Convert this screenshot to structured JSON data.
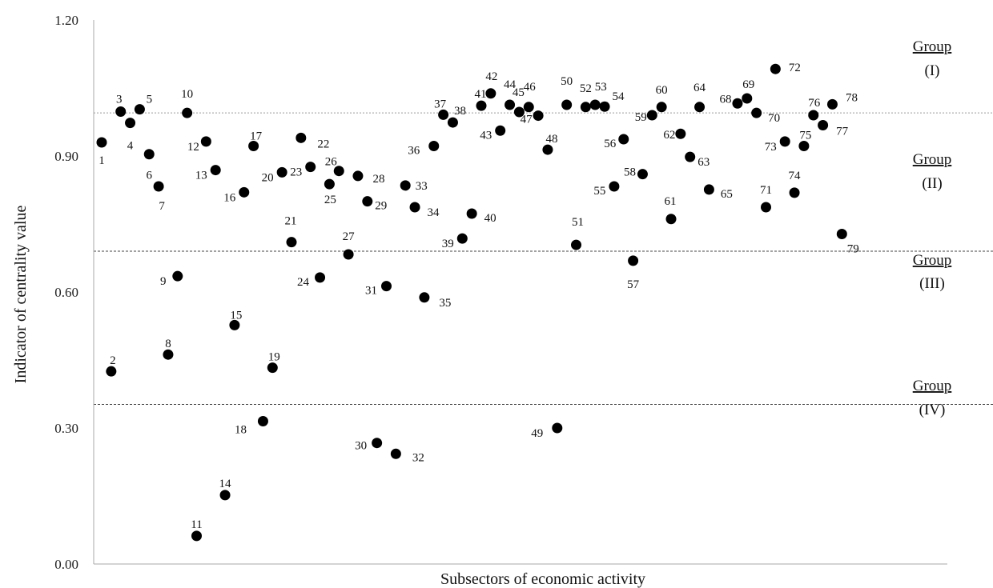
{
  "chart_data": {
    "type": "scatter",
    "title": "",
    "xlabel": "Subsectors of economic activity",
    "ylabel": "Indicator of centrality value",
    "ylim": [
      0,
      1.2
    ],
    "yticks": [
      "0.00",
      "0.30",
      "0.60",
      "0.90",
      "1.20"
    ],
    "grid": false,
    "marker_color": "#000000",
    "points": [
      {
        "x": 1,
        "y": 0.93,
        "label": "1"
      },
      {
        "x": 2,
        "y": 0.425,
        "label": "2"
      },
      {
        "x": 3,
        "y": 0.998,
        "label": "3"
      },
      {
        "x": 4,
        "y": 0.973,
        "label": "4"
      },
      {
        "x": 5,
        "y": 1.003,
        "label": "5"
      },
      {
        "x": 6,
        "y": 0.904,
        "label": "6"
      },
      {
        "x": 7,
        "y": 0.833,
        "label": "7"
      },
      {
        "x": 8,
        "y": 0.462,
        "label": "8"
      },
      {
        "x": 9,
        "y": 0.635,
        "label": "9"
      },
      {
        "x": 10,
        "y": 0.995,
        "label": "10"
      },
      {
        "x": 11,
        "y": 0.062,
        "label": "11"
      },
      {
        "x": 12,
        "y": 0.932,
        "label": "12"
      },
      {
        "x": 13,
        "y": 0.869,
        "label": "13"
      },
      {
        "x": 14,
        "y": 0.152,
        "label": "14"
      },
      {
        "x": 15,
        "y": 0.527,
        "label": "15"
      },
      {
        "x": 16,
        "y": 0.82,
        "label": "16"
      },
      {
        "x": 17,
        "y": 0.922,
        "label": "17"
      },
      {
        "x": 18,
        "y": 0.315,
        "label": "18"
      },
      {
        "x": 19,
        "y": 0.433,
        "label": "19"
      },
      {
        "x": 20,
        "y": 0.864,
        "label": "20"
      },
      {
        "x": 21,
        "y": 0.71,
        "label": "21"
      },
      {
        "x": 22,
        "y": 0.94,
        "label": "22"
      },
      {
        "x": 23,
        "y": 0.876,
        "label": "23"
      },
      {
        "x": 24,
        "y": 0.632,
        "label": "24"
      },
      {
        "x": 25,
        "y": 0.838,
        "label": "25"
      },
      {
        "x": 26,
        "y": 0.867,
        "label": "26"
      },
      {
        "x": 27,
        "y": 0.683,
        "label": "27"
      },
      {
        "x": 28,
        "y": 0.856,
        "label": "28"
      },
      {
        "x": 29,
        "y": 0.8,
        "label": "29"
      },
      {
        "x": 30,
        "y": 0.267,
        "label": "30"
      },
      {
        "x": 31,
        "y": 0.613,
        "label": "31"
      },
      {
        "x": 32,
        "y": 0.243,
        "label": "32"
      },
      {
        "x": 33,
        "y": 0.835,
        "label": "33"
      },
      {
        "x": 34,
        "y": 0.787,
        "label": "34"
      },
      {
        "x": 35,
        "y": 0.588,
        "label": "35"
      },
      {
        "x": 36,
        "y": 0.922,
        "label": "36"
      },
      {
        "x": 37,
        "y": 0.991,
        "label": "37"
      },
      {
        "x": 38,
        "y": 0.974,
        "label": "38"
      },
      {
        "x": 39,
        "y": 0.718,
        "label": "39"
      },
      {
        "x": 40,
        "y": 0.773,
        "label": "40"
      },
      {
        "x": 41,
        "y": 1.011,
        "label": "41"
      },
      {
        "x": 42,
        "y": 1.038,
        "label": "42"
      },
      {
        "x": 43,
        "y": 0.956,
        "label": "43"
      },
      {
        "x": 44,
        "y": 1.013,
        "label": "44"
      },
      {
        "x": 45,
        "y": 0.997,
        "label": "45"
      },
      {
        "x": 46,
        "y": 1.008,
        "label": "46"
      },
      {
        "x": 47,
        "y": 0.989,
        "label": "47"
      },
      {
        "x": 48,
        "y": 0.914,
        "label": "48"
      },
      {
        "x": 49,
        "y": 0.3,
        "label": "49"
      },
      {
        "x": 50,
        "y": 1.013,
        "label": "50"
      },
      {
        "x": 51,
        "y": 0.704,
        "label": "51"
      },
      {
        "x": 52,
        "y": 1.008,
        "label": "52"
      },
      {
        "x": 53,
        "y": 1.013,
        "label": "53"
      },
      {
        "x": 54,
        "y": 1.009,
        "label": "54"
      },
      {
        "x": 55,
        "y": 0.833,
        "label": "55"
      },
      {
        "x": 56,
        "y": 0.937,
        "label": "56"
      },
      {
        "x": 57,
        "y": 0.669,
        "label": "57"
      },
      {
        "x": 58,
        "y": 0.86,
        "label": "58"
      },
      {
        "x": 59,
        "y": 0.99,
        "label": "59"
      },
      {
        "x": 60,
        "y": 1.008,
        "label": "60"
      },
      {
        "x": 61,
        "y": 0.761,
        "label": "61"
      },
      {
        "x": 62,
        "y": 0.949,
        "label": "62"
      },
      {
        "x": 63,
        "y": 0.898,
        "label": "63"
      },
      {
        "x": 64,
        "y": 1.008,
        "label": "64"
      },
      {
        "x": 65,
        "y": 0.826,
        "label": "65"
      },
      {
        "x": 68,
        "y": 1.016,
        "label": "68"
      },
      {
        "x": 69,
        "y": 1.027,
        "label": "69"
      },
      {
        "x": 70,
        "y": 0.995,
        "label": "70"
      },
      {
        "x": 71,
        "y": 0.787,
        "label": "71"
      },
      {
        "x": 72,
        "y": 1.092,
        "label": "72"
      },
      {
        "x": 73,
        "y": 0.932,
        "label": "73"
      },
      {
        "x": 74,
        "y": 0.819,
        "label": "74"
      },
      {
        "x": 75,
        "y": 0.922,
        "label": "75"
      },
      {
        "x": 76,
        "y": 0.99,
        "label": "76"
      },
      {
        "x": 77,
        "y": 0.968,
        "label": "77"
      },
      {
        "x": 78,
        "y": 1.014,
        "label": "78"
      },
      {
        "x": 79,
        "y": 0.728,
        "label": "79"
      }
    ],
    "threshold_lines": [
      {
        "y": 0.995,
        "style": "dotted",
        "color": "#999999"
      },
      {
        "y": 0.69,
        "style": "dashed",
        "color": "#444444"
      },
      {
        "y": 0.352,
        "style": "dashed",
        "color": "#444444"
      }
    ],
    "groups": [
      {
        "title": "Group",
        "roman": "(I)"
      },
      {
        "title": "Group",
        "roman": "(II)"
      },
      {
        "title": "Group",
        "roman": "(III)"
      },
      {
        "title": "Group",
        "roman": "(IV)"
      }
    ]
  }
}
